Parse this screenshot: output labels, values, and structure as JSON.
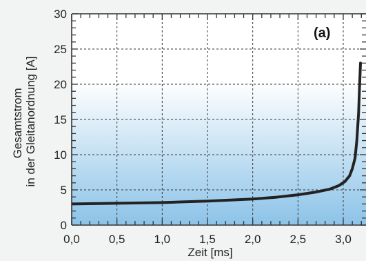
{
  "chart_data": {
    "type": "line",
    "title": "",
    "panel_label": "(a)",
    "xlabel": "Zeit [ms]",
    "ylabel_lines": [
      "Gesamtstrom",
      "in der Gleitanordnung [A]"
    ],
    "xlim": [
      0,
      3.2
    ],
    "ylim": [
      0,
      30
    ],
    "x_ticks": [
      {
        "value": 0.0,
        "label": "0,0"
      },
      {
        "value": 0.5,
        "label": "0,5"
      },
      {
        "value": 1.0,
        "label": "1,0"
      },
      {
        "value": 1.5,
        "label": "1,5"
      },
      {
        "value": 2.0,
        "label": "2,0"
      },
      {
        "value": 2.5,
        "label": "2,5"
      },
      {
        "value": 3.0,
        "label": "3,0"
      }
    ],
    "y_ticks": [
      {
        "value": 0,
        "label": "0"
      },
      {
        "value": 5,
        "label": "5"
      },
      {
        "value": 10,
        "label": "10"
      },
      {
        "value": 15,
        "label": "15"
      },
      {
        "value": 20,
        "label": "20"
      },
      {
        "value": 25,
        "label": "25"
      },
      {
        "value": 30,
        "label": "30"
      }
    ],
    "grid": true,
    "colors": {
      "line": "#222222",
      "grid": "#333333",
      "gradient_top": "#ffffff",
      "gradient_bottom": "#8cc3e8"
    },
    "series": [
      {
        "x": [
          0.0,
          0.25,
          0.5,
          0.75,
          1.0,
          1.25,
          1.5,
          1.75,
          2.0,
          2.25,
          2.5,
          2.7,
          2.85,
          2.95,
          3.02,
          3.07,
          3.1,
          3.13,
          3.15,
          3.17,
          3.18,
          3.19
        ],
        "y": [
          3.0,
          3.05,
          3.1,
          3.15,
          3.2,
          3.3,
          3.4,
          3.55,
          3.7,
          3.95,
          4.3,
          4.7,
          5.1,
          5.6,
          6.2,
          7.0,
          8.0,
          9.5,
          12.0,
          16.0,
          19.5,
          23.0
        ]
      }
    ]
  }
}
